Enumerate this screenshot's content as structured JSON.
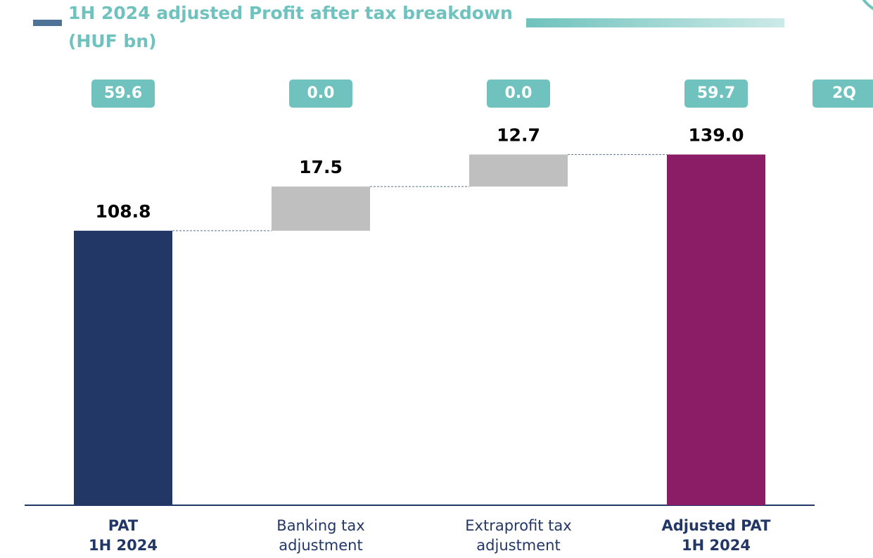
{
  "chart_data": {
    "type": "waterfall",
    "title_lines": [
      "1H 2024 adjusted Profit after tax breakdown",
      "(HUF bn)"
    ],
    "categories": [
      [
        "PAT",
        "1H 2024"
      ],
      [
        "Banking tax",
        "adjustment"
      ],
      [
        "Extraprofit tax",
        "adjustment"
      ],
      [
        "Adjusted PAT",
        "1H 2024"
      ]
    ],
    "values": [
      108.8,
      17.5,
      12.7,
      139.0
    ],
    "value_labels": [
      "108.8",
      "17.5",
      "12.7",
      "139.0"
    ],
    "kinds": [
      "total",
      "delta",
      "delta",
      "total"
    ],
    "colors": [
      "#233766",
      "#bfbfbf",
      "#bfbfbf",
      "#8b1c66"
    ],
    "badges": {
      "values": [
        59.6,
        0.0,
        0.0,
        59.7
      ],
      "value_labels": [
        "59.6",
        "0.0",
        "0.0",
        "59.7"
      ],
      "color": "#6fc2bd"
    },
    "badge_header": "2Q",
    "ylim": [
      0,
      140
    ]
  }
}
